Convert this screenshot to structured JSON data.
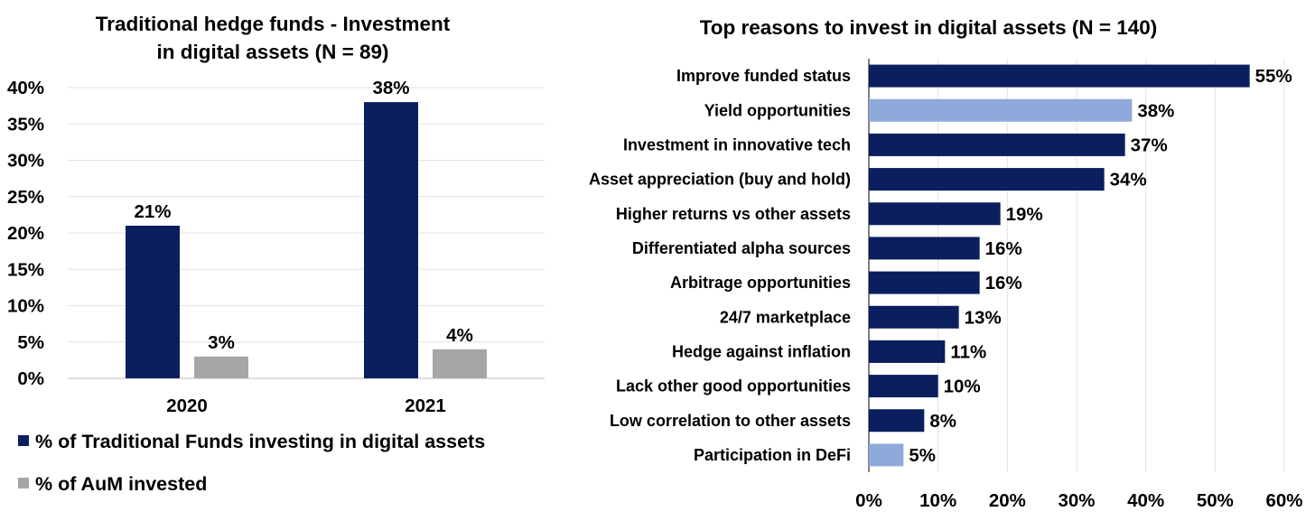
{
  "chart_data": [
    {
      "type": "bar",
      "title": [
        "Traditional hedge funds - Investment",
        "in digital assets (N = 89)"
      ],
      "categories": [
        "2020",
        "2021"
      ],
      "series": [
        {
          "name": "% of Traditional Funds investing in digital assets",
          "values": [
            21,
            38
          ],
          "color": "#0b1f5e",
          "labels": [
            "21%",
            "38%"
          ]
        },
        {
          "name": "% of AuM invested",
          "values": [
            3,
            4
          ],
          "color": "#a6a6a6",
          "labels": [
            "3%",
            "4%"
          ]
        }
      ],
      "ylim": [
        0,
        40
      ],
      "yticks": [
        0,
        5,
        10,
        15,
        20,
        25,
        30,
        35,
        40
      ],
      "ytick_labels": [
        "0%",
        "5%",
        "10%",
        "15%",
        "20%",
        "25%",
        "30%",
        "35%",
        "40%"
      ],
      "grid": true,
      "legend_position": "bottom"
    },
    {
      "type": "bar",
      "orientation": "horizontal",
      "title": "Top reasons to invest in digital assets (N = 140)",
      "categories": [
        "Improve funded status",
        "Yield opportunities",
        "Investment in innovative tech",
        "Asset appreciation (buy and hold)",
        "Higher returns vs other assets",
        "Differentiated alpha sources",
        "Arbitrage opportunities",
        "24/7 marketplace",
        "Hedge against inflation",
        "Lack other good opportunities",
        "Low correlation to other assets",
        "Participation in DeFi"
      ],
      "values": [
        55,
        38,
        37,
        34,
        19,
        16,
        16,
        13,
        11,
        10,
        8,
        5
      ],
      "labels": [
        "55%",
        "38%",
        "37%",
        "34%",
        "19%",
        "16%",
        "16%",
        "13%",
        "11%",
        "10%",
        "8%",
        "5%"
      ],
      "highlighted": [
        false,
        true,
        false,
        false,
        false,
        false,
        false,
        false,
        false,
        false,
        false,
        true
      ],
      "color": "#0b1f5e",
      "highlight_color": "#8eaadb",
      "xlim": [
        0,
        60
      ],
      "xticks": [
        0,
        10,
        20,
        30,
        40,
        50,
        60
      ],
      "xtick_labels": [
        "0%",
        "10%",
        "20%",
        "30%",
        "40%",
        "50%",
        "60%"
      ],
      "grid": true
    }
  ]
}
